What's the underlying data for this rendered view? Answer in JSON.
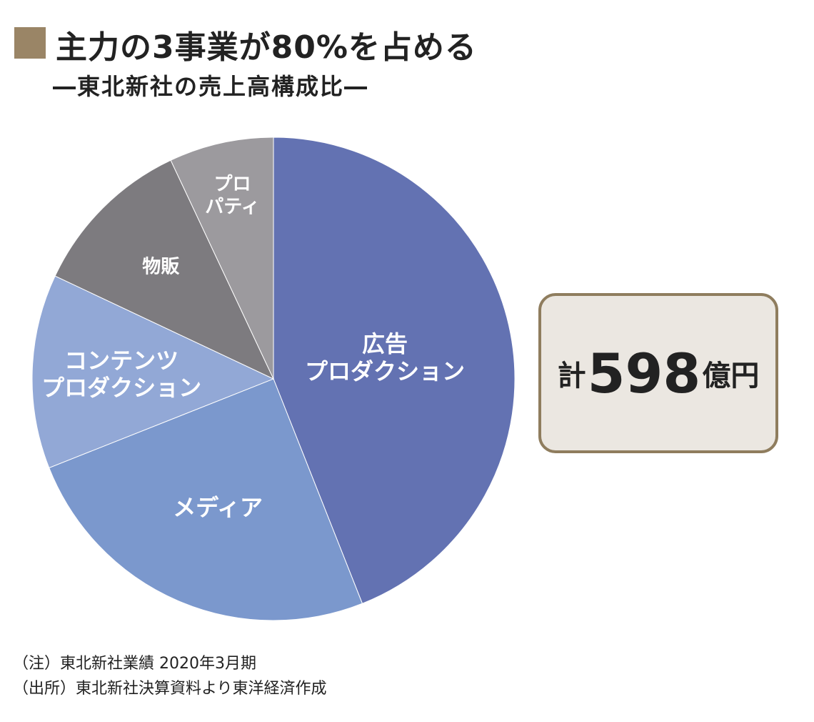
{
  "header": {
    "title": "主力の3事業が80%を占める",
    "subtitle": "―東北新社の売上高構成比―"
  },
  "colors": {
    "title_marker": "#9a8566",
    "box_border": "#8f7d5e",
    "box_fill": "#ebe7e1"
  },
  "chart_data": {
    "type": "pie",
    "title": "主力の3事業が80%を占める",
    "subtitle": "―東北新社の売上高構成比―",
    "slices": [
      {
        "label": "広告\nプロダクション",
        "value": 44,
        "color": "#6372b2"
      },
      {
        "label": "メディア",
        "value": 25,
        "color": "#7b98cd"
      },
      {
        "label": "コンテンツ\nプロダクション",
        "value": 13,
        "color": "#92a8d6"
      },
      {
        "label": "物販",
        "value": 11,
        "color": "#7d7b7f"
      },
      {
        "label": "プロ\nパティ",
        "value": 7,
        "color": "#9c9a9e"
      }
    ],
    "total": {
      "prefix": "計",
      "value": "598",
      "unit": "億円"
    }
  },
  "notes": {
    "line1": "（注）東北新社業績 2020年3月期",
    "line2": "（出所）東北新社決算資料より東洋経済作成"
  }
}
